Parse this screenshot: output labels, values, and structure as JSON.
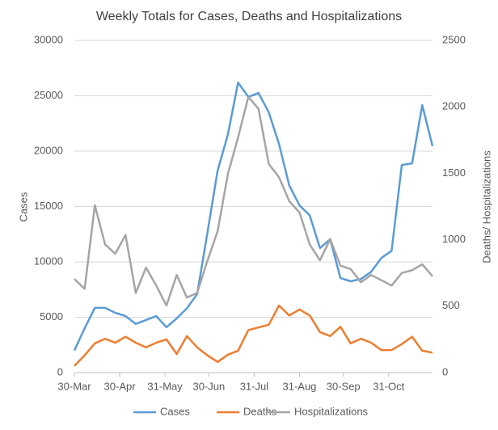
{
  "chart_data": {
    "type": "line",
    "title": "Weekly Totals for Cases, Deaths and Hospitalizations",
    "y_label": "Cases",
    "y2_label": "Deaths/ Hospitalizations",
    "x": [
      "30-Mar",
      "6-Apr",
      "13-Apr",
      "20-Apr",
      "27-Apr",
      "4-May",
      "11-May",
      "18-May",
      "25-May",
      "1-Jun",
      "8-Jun",
      "15-Jun",
      "22-Jun",
      "29-Jun",
      "6-Jul",
      "13-Jul",
      "20-Jul",
      "27-Jul",
      "3-Aug",
      "10-Aug",
      "17-Aug",
      "24-Aug",
      "31-Aug",
      "7-Sep",
      "14-Sep",
      "21-Sep",
      "28-Sep",
      "5-Oct",
      "12-Oct",
      "19-Oct",
      "26-Oct",
      "2-Nov",
      "9-Nov",
      "16-Nov",
      "23-Nov",
      "30-Nov"
    ],
    "xlim": [
      "30-Mar",
      "30-Nov"
    ],
    "xticks": [
      "30-Mar",
      "30-Apr",
      "31-May",
      "30-Jun",
      "31-Jul",
      "31-Aug",
      "30-Sep",
      "31-Oct"
    ],
    "ylim": [
      0,
      30000
    ],
    "yticks": [
      0,
      5000,
      10000,
      15000,
      20000,
      25000,
      30000
    ],
    "y2lim": [
      0,
      2500
    ],
    "y2ticks": [
      0,
      500,
      1000,
      1500,
      2000,
      2500
    ],
    "grid": true,
    "legend": "bottom",
    "series": [
      {
        "name": "Cases",
        "color": "#5b9bd5",
        "values": [
          2000,
          4000,
          5850,
          5850,
          5400,
          5100,
          4400,
          4750,
          5100,
          4100,
          4900,
          5800,
          7100,
          12600,
          18250,
          21500,
          26200,
          24900,
          25250,
          23500,
          20650,
          16900,
          15100,
          14200,
          11250,
          12050,
          8550,
          8250,
          8450,
          9100,
          10350,
          11000,
          18750,
          18900,
          24150,
          20450
        ]
      },
      {
        "name": "Deaths",
        "color": "#ed7d31",
        "axis": "y2",
        "values": [
          50,
          130,
          220,
          255,
          225,
          270,
          225,
          190,
          225,
          250,
          140,
          275,
          190,
          130,
          80,
          135,
          165,
          320,
          340,
          360,
          505,
          430,
          475,
          430,
          305,
          275,
          345,
          220,
          255,
          225,
          170,
          170,
          215,
          270,
          165,
          150
        ]
      },
      {
        "name": "Hospitalizations",
        "color": "#a5a5a5",
        "axis": "y2",
        "values": [
          705,
          630,
          1260,
          965,
          895,
          1035,
          600,
          790,
          655,
          505,
          735,
          565,
          600,
          840,
          1065,
          1495,
          1770,
          2075,
          1985,
          1570,
          1470,
          1290,
          1205,
          965,
          845,
          1005,
          805,
          780,
          680,
          735,
          695,
          655,
          750,
          770,
          815,
          725
        ]
      }
    ]
  }
}
